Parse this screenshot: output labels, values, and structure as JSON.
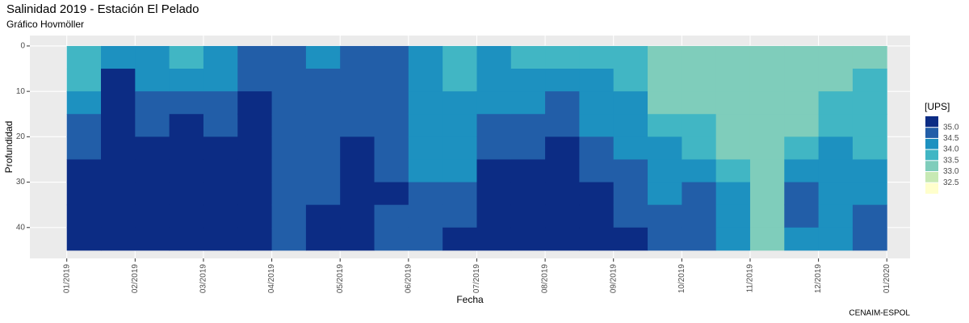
{
  "chart_data": {
    "type": "hovmoller",
    "title": "Salinidad 2019 - Estación El Pelado",
    "subtitle": "Gráfico Hovmöller",
    "x_label": "Fecha",
    "y_label": "Profundidad",
    "caption": "CENAIM-ESPOL",
    "legend_title": "[UPS]",
    "xlim": [
      -0.54,
      12.34
    ],
    "ylim": [
      46.8,
      -2.3
    ],
    "xticks": [
      {
        "value": 0,
        "label": "01/2019"
      },
      {
        "value": 1,
        "label": "02/2019"
      },
      {
        "value": 2,
        "label": "03/2019"
      },
      {
        "value": 3,
        "label": "04/2019"
      },
      {
        "value": 4,
        "label": "05/2019"
      },
      {
        "value": 5,
        "label": "06/2019"
      },
      {
        "value": 6,
        "label": "07/2019"
      },
      {
        "value": 7,
        "label": "08/2019"
      },
      {
        "value": 8,
        "label": "09/2019"
      },
      {
        "value": 9,
        "label": "10/2019"
      },
      {
        "value": 10,
        "label": "11/2019"
      },
      {
        "value": 11,
        "label": "12/2019"
      },
      {
        "value": 12,
        "label": "01/2020"
      }
    ],
    "yticks": [
      0,
      10,
      20,
      30,
      40
    ],
    "grid": true,
    "x": [
      0.25,
      0.75,
      1.25,
      1.75,
      2.25,
      2.75,
      3.25,
      3.75,
      4.25,
      4.75,
      5.25,
      5.75,
      6.25,
      6.75,
      7.25,
      7.75,
      8.25,
      8.75,
      9.25,
      9.75,
      10.25,
      10.75,
      11.25,
      11.75
    ],
    "depths": [
      2.5,
      7.5,
      12.5,
      17.5,
      22.5,
      27.5,
      32.5,
      37.5,
      42.5
    ],
    "levels": [
      {
        "value": 32.5,
        "label": "32.5"
      },
      {
        "value": 33,
        "label": "33.0"
      },
      {
        "value": 33.5,
        "label": "33.5"
      },
      {
        "value": 34,
        "label": "34.0"
      },
      {
        "value": 34.5,
        "label": "34.5"
      },
      {
        "value": 35,
        "label": "35.0"
      }
    ],
    "colors": [
      "#ffffcc",
      "#c7e9b4",
      "#7fcdbb",
      "#41b6c4",
      "#1d91c0",
      "#225ea8",
      "#0c2c84"
    ],
    "z": [
      [
        33.8,
        33.8,
        34.2,
        34.6,
        34.8,
        35.1,
        35.1,
        35.1,
        35.1
      ],
      [
        34.3,
        35.1,
        35.1,
        35.1,
        35.1,
        35.1,
        35.1,
        35.1,
        35.1
      ],
      [
        34.3,
        34.3,
        34.6,
        34.7,
        35.1,
        35.1,
        35.1,
        35.1,
        35.1
      ],
      [
        33.8,
        34.2,
        34.6,
        35.1,
        35.1,
        35.1,
        35.1,
        35.1,
        35.1
      ],
      [
        34.2,
        34.2,
        34.6,
        34.7,
        35.1,
        35.1,
        35.1,
        35.1,
        35.1
      ],
      [
        34.6,
        34.7,
        35.1,
        35.1,
        35.1,
        35.1,
        35.1,
        35.1,
        35.1
      ],
      [
        34.6,
        34.6,
        34.6,
        34.6,
        34.6,
        34.6,
        34.6,
        34.6,
        34.6
      ],
      [
        34.2,
        34.6,
        34.6,
        34.6,
        34.6,
        34.6,
        34.6,
        35.1,
        35.1
      ],
      [
        34.6,
        34.6,
        34.6,
        34.6,
        35.1,
        35.1,
        35.1,
        35.1,
        35.1
      ],
      [
        34.6,
        34.6,
        34.6,
        34.6,
        34.6,
        34.6,
        35.1,
        34.6,
        34.6
      ],
      [
        34.2,
        34.2,
        34.2,
        34.2,
        34.2,
        34.2,
        34.6,
        34.6,
        34.6
      ],
      [
        33.8,
        33.8,
        34.2,
        34.2,
        34.2,
        34.2,
        34.6,
        34.6,
        35.1
      ],
      [
        34.2,
        34.2,
        34.2,
        34.6,
        34.6,
        35.1,
        35.1,
        35.1,
        35.1
      ],
      [
        33.8,
        34.2,
        34.2,
        34.6,
        34.6,
        35.1,
        35.1,
        35.1,
        35.1
      ],
      [
        33.8,
        34.2,
        34.6,
        34.6,
        35.1,
        35.1,
        35.1,
        35.1,
        35.1
      ],
      [
        33.8,
        34.2,
        34.2,
        34.2,
        34.6,
        34.6,
        35.1,
        35.1,
        35.1
      ],
      [
        33.8,
        33.8,
        34.2,
        34.2,
        34.2,
        34.6,
        34.6,
        34.6,
        35.1
      ],
      [
        33.3,
        33.3,
        33.3,
        33.8,
        34.2,
        34.2,
        34.2,
        34.6,
        34.6
      ],
      [
        33.3,
        33.3,
        33.3,
        33.8,
        33.8,
        34.2,
        34.6,
        34.6,
        34.6
      ],
      [
        33.3,
        33.3,
        33.3,
        33.3,
        33.3,
        33.8,
        34.2,
        34.2,
        34.2
      ],
      [
        33.3,
        33.3,
        33.3,
        33.3,
        33.3,
        33.3,
        33.3,
        33.3,
        33.3
      ],
      [
        33.3,
        33.3,
        33.3,
        33.3,
        33.8,
        34.2,
        34.6,
        34.6,
        34.2
      ],
      [
        33.3,
        33.3,
        33.8,
        33.8,
        34.2,
        34.2,
        34.2,
        34.2,
        34.2
      ],
      [
        33.3,
        33.8,
        33.8,
        33.8,
        33.8,
        34.2,
        34.2,
        34.6,
        34.6
      ]
    ]
  }
}
